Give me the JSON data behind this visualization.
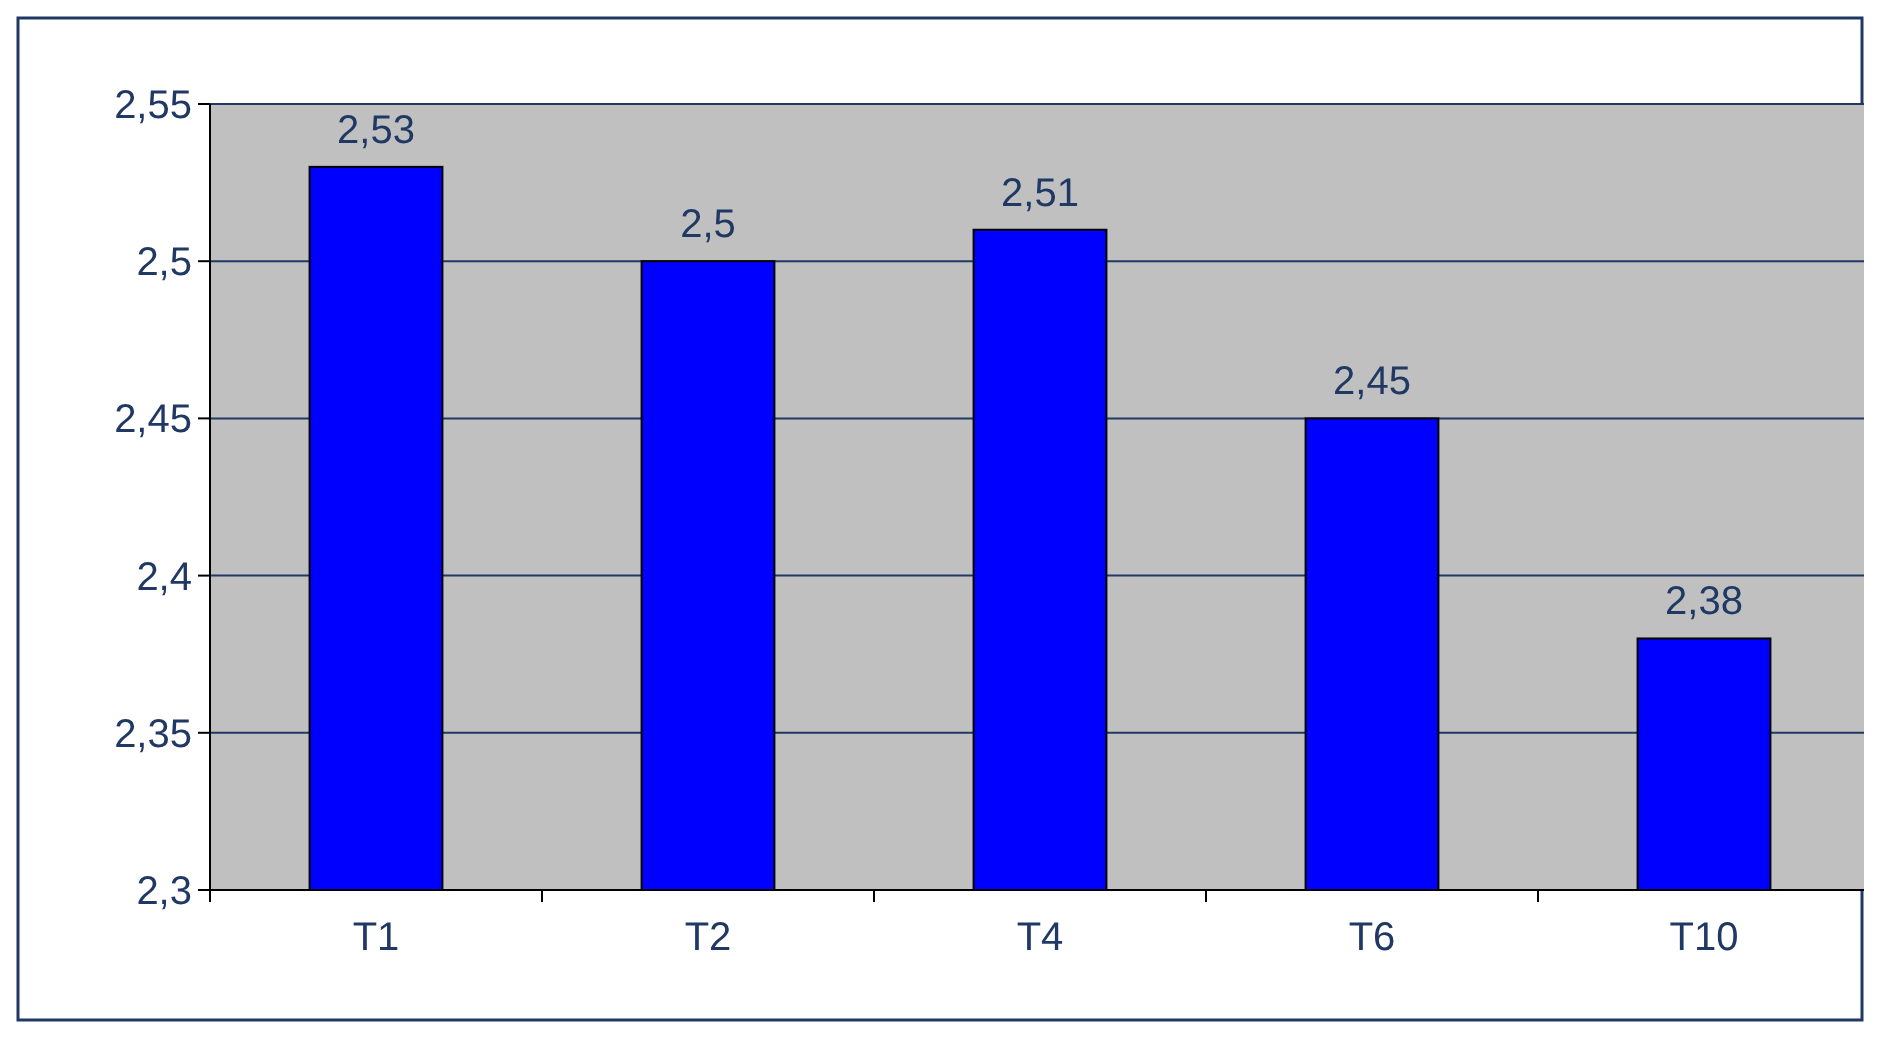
{
  "chart_data": {
    "type": "bar",
    "categories": [
      "T1",
      "T2",
      "T4",
      "T6",
      "T10"
    ],
    "values": [
      2.53,
      2.5,
      2.51,
      2.45,
      2.38
    ],
    "color": "#0000ff",
    "value_labels": [
      "2,53",
      "2,5",
      "2,51",
      "2,45",
      "2,38"
    ],
    "ylim": [
      2.3,
      2.55
    ],
    "yticks": [
      {
        "value": 2.3,
        "label": "2,3"
      },
      {
        "value": 2.35,
        "label": "2,35"
      },
      {
        "value": 2.4,
        "label": "2,4"
      },
      {
        "value": 2.45,
        "label": "2,45"
      },
      {
        "value": 2.5,
        "label": "2,5"
      },
      {
        "value": 2.55,
        "label": "2,55"
      }
    ],
    "grid": "y"
  }
}
